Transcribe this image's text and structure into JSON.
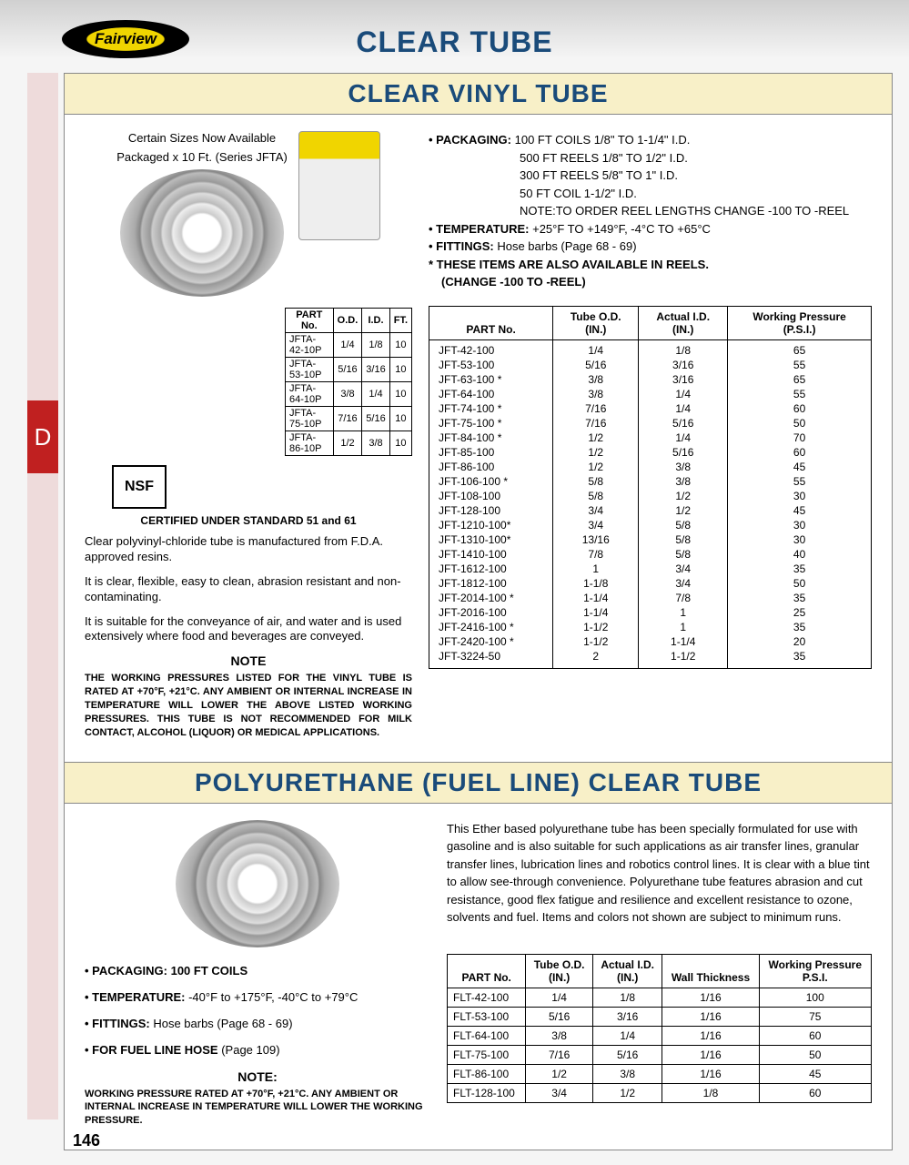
{
  "logo_text": "Fairview",
  "page_title": "CLEAR TUBE",
  "page_number": "146",
  "side_tab": "D",
  "section1": {
    "header": "CLEAR VINYL TUBE",
    "packaged_note1": "Certain Sizes Now Available",
    "packaged_note2": "Packaged x 10 Ft. (Series JFTA)",
    "small_table": {
      "headers": [
        "PART No.",
        "O.D.",
        "I.D.",
        "FT."
      ],
      "rows": [
        [
          "JFTA-42-10P",
          "1/4",
          "1/8",
          "10"
        ],
        [
          "JFTA-53-10P",
          "5/16",
          "3/16",
          "10"
        ],
        [
          "JFTA-64-10P",
          "3/8",
          "1/4",
          "10"
        ],
        [
          "JFTA-75-10P",
          "7/16",
          "5/16",
          "10"
        ],
        [
          "JFTA-86-10P",
          "1/2",
          "3/8",
          "10"
        ]
      ]
    },
    "nsf": "NSF",
    "cert": "CERTIFIED UNDER STANDARD 51 and 61",
    "p1": "Clear polyvinyl-chloride tube is manufactured from F.D.A. approved resins.",
    "p2": "It is clear, flexible, easy to clean, abrasion resistant and non-contaminating.",
    "p3": "It is suitable for the conveyance of air, and water and is used extensively where food and beverages are conveyed.",
    "note_title": "NOTE",
    "note_body": "THE WORKING PRESSURES LISTED FOR THE VINYL TUBE IS RATED AT +70°F, +21°C. ANY AMBIENT OR INTERNAL INCREASE IN TEMPERATURE WILL LOWER THE ABOVE LISTED WORKING PRESSURES. THIS TUBE IS NOT RECOMMENDED FOR MILK CONTACT, ALCOHOL (LIQUOR) OR MEDICAL APPLICATIONS.",
    "right": {
      "pkg_label": "PACKAGING:",
      "pkg_l1": "100 FT COILS 1/8\" TO 1-1/4\" I.D.",
      "pkg_l2": "500 FT REELS 1/8\" TO 1/2\" I.D.",
      "pkg_l3": "300 FT REELS 5/8\" TO 1\" I.D.",
      "pkg_l4": "50 FT COIL 1-1/2\" I.D.",
      "note_order": "NOTE:TO ORDER REEL LENGTHS CHANGE -100 TO -REEL",
      "temp_label": "TEMPERATURE:",
      "temp_val": "+25°F TO +149°F,  -4°C TO +65°C",
      "fit_label": "FITTINGS:",
      "fit_val": "Hose barbs (Page 68 - 69)",
      "asterisk": "* THESE ITEMS ARE ALSO AVAILABLE IN REELS.",
      "asterisk2": "(CHANGE -100 TO -REEL)"
    },
    "main_table": {
      "headers": [
        "PART No.",
        "Tube O.D. (IN.)",
        "Actual I.D. (IN.)",
        "Working Pressure (P.S.I.)"
      ],
      "rows": [
        [
          "JFT-42-100",
          "1/4",
          "1/8",
          "65"
        ],
        [
          "JFT-53-100",
          "5/16",
          "3/16",
          "55"
        ],
        [
          "JFT-63-100 *",
          "3/8",
          "3/16",
          "65"
        ],
        [
          "JFT-64-100",
          "3/8",
          "1/4",
          "55"
        ],
        [
          "JFT-74-100 *",
          "7/16",
          "1/4",
          "60"
        ],
        [
          "JFT-75-100 *",
          "7/16",
          "5/16",
          "50"
        ],
        [
          "JFT-84-100 *",
          "1/2",
          "1/4",
          "70"
        ],
        [
          "JFT-85-100",
          "1/2",
          "5/16",
          "60"
        ],
        [
          "JFT-86-100",
          "1/2",
          "3/8",
          "45"
        ],
        [
          "JFT-106-100 *",
          "5/8",
          "3/8",
          "55"
        ],
        [
          "JFT-108-100",
          "5/8",
          "1/2",
          "30"
        ],
        [
          "JFT-128-100",
          "3/4",
          "1/2",
          "45"
        ],
        [
          "JFT-1210-100*",
          "3/4",
          "5/8",
          "30"
        ],
        [
          "JFT-1310-100*",
          "13/16",
          "5/8",
          "30"
        ],
        [
          "JFT-1410-100",
          "7/8",
          "5/8",
          "40"
        ],
        [
          "JFT-1612-100",
          "1",
          "3/4",
          "35"
        ],
        [
          "JFT-1812-100",
          "1-1/8",
          "3/4",
          "50"
        ],
        [
          "JFT-2014-100 *",
          "1-1/4",
          "7/8",
          "35"
        ],
        [
          "JFT-2016-100",
          "1-1/4",
          "1",
          "25"
        ],
        [
          "JFT-2416-100 *",
          "1-1/2",
          "1",
          "35"
        ],
        [
          "JFT-2420-100 *",
          "1-1/2",
          "1-1/4",
          "20"
        ],
        [
          "JFT-3224-50",
          "2",
          "1-1/2",
          "35"
        ]
      ]
    }
  },
  "section2": {
    "header": "POLYURETHANE (FUEL LINE) CLEAR TUBE",
    "desc": "This Ether based polyurethane tube has been specially formulated for use with gasoline and is also suitable for such applications as air transfer lines, granular transfer lines, lubrication lines and robotics control lines.  It is clear with a blue tint to allow see-through convenience.  Polyurethane tube features abrasion and cut resistance, good flex fatigue and resilience and excellent resistance to ozone, solvents and fuel. Items and colors not shown are subject to minimum runs.",
    "spec1": "PACKAGING: 100 FT COILS",
    "spec2_l": "TEMPERATURE:",
    "spec2_v": " -40°F to +175°F, -40°C to +79°C",
    "spec3_l": "FITTINGS:",
    "spec3_v": " Hose barbs (Page 68 - 69)",
    "spec4_l": "FOR FUEL LINE HOSE",
    "spec4_v": " (Page 109)",
    "note_title": "NOTE:",
    "note_body": "WORKING PRESSURE RATED AT +70°F, +21°C. ANY AMBIENT OR INTERNAL INCREASE IN TEMPERATURE WILL LOWER THE WORKING PRESSURE.",
    "table": {
      "headers": [
        "PART No.",
        "Tube O.D. (IN.)",
        "Actual I.D. (IN.)",
        "Wall Thickness",
        "Working Pressure P.S.I."
      ],
      "rows": [
        [
          "FLT-42-100",
          "1/4",
          "1/8",
          "1/16",
          "100"
        ],
        [
          "FLT-53-100",
          "5/16",
          "3/16",
          "1/16",
          "75"
        ],
        [
          "FLT-64-100",
          "3/8",
          "1/4",
          "1/16",
          "60"
        ],
        [
          "FLT-75-100",
          "7/16",
          "5/16",
          "1/16",
          "50"
        ],
        [
          "FLT-86-100",
          "1/2",
          "3/8",
          "1/16",
          "45"
        ],
        [
          "FLT-128-100",
          "3/4",
          "1/2",
          "1/8",
          "60"
        ]
      ]
    }
  }
}
